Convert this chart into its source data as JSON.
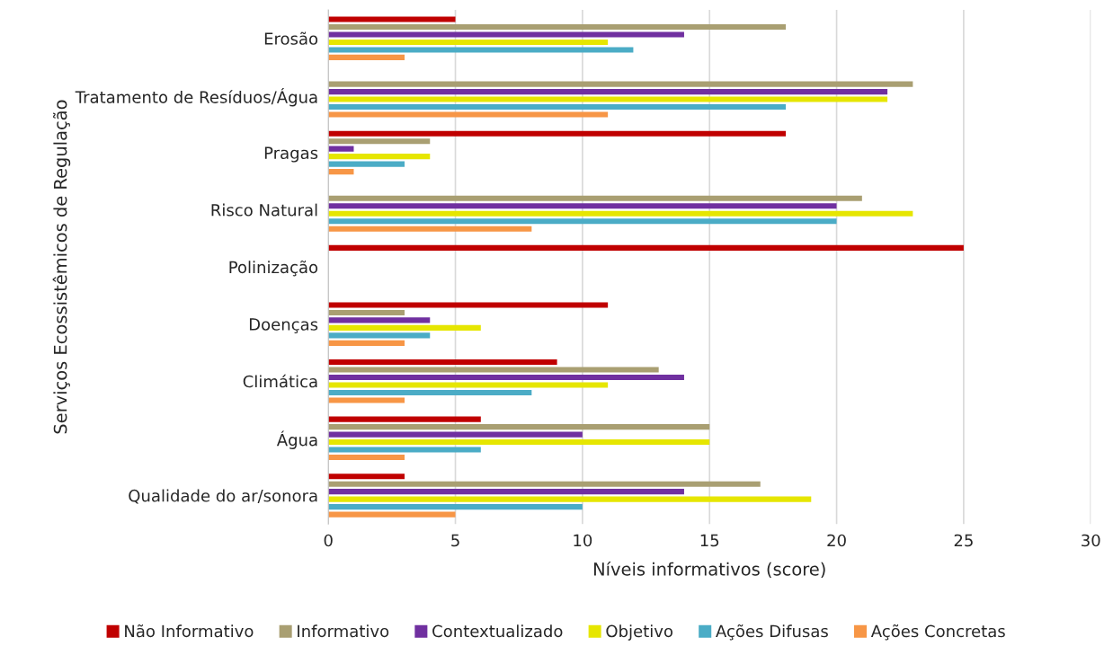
{
  "chart_data": {
    "type": "bar",
    "orientation": "horizontal",
    "xlabel": "Níveis informativos (score)",
    "ylabel": "Serviços Ecossistêmicos de Regulação",
    "categories": [
      "Erosão",
      "Tratamento de Resíduos/Água",
      "Pragas",
      "Risco Natural",
      "Polinização",
      "Doenças",
      "Climática",
      "Água",
      "Qualidade do ar/sonora"
    ],
    "series": [
      {
        "name": "Não Informativo",
        "color": "#c00000",
        "values": [
          5,
          null,
          18,
          null,
          25,
          11,
          9,
          6,
          3
        ]
      },
      {
        "name": "Informativo",
        "color": "#a99f72",
        "values": [
          18,
          23,
          4,
          21,
          null,
          3,
          13,
          15,
          17
        ]
      },
      {
        "name": "Contextualizado",
        "color": "#7030a0",
        "values": [
          14,
          22,
          1,
          20,
          null,
          4,
          14,
          10,
          14
        ]
      },
      {
        "name": "Objetivo",
        "color": "#e6e600",
        "values": [
          11,
          22,
          4,
          23,
          null,
          6,
          11,
          15,
          19
        ]
      },
      {
        "name": "Ações Difusas",
        "color": "#4bacc6",
        "values": [
          12,
          18,
          3,
          20,
          null,
          4,
          8,
          6,
          10
        ]
      },
      {
        "name": "Ações Concretas",
        "color": "#f79646",
        "values": [
          3,
          11,
          1,
          8,
          null,
          3,
          3,
          3,
          5
        ]
      }
    ],
    "xlim": [
      0,
      30
    ],
    "xticks": [
      0,
      5,
      10,
      15,
      20,
      25,
      30
    ],
    "grid": "x",
    "legend": "bottom"
  }
}
